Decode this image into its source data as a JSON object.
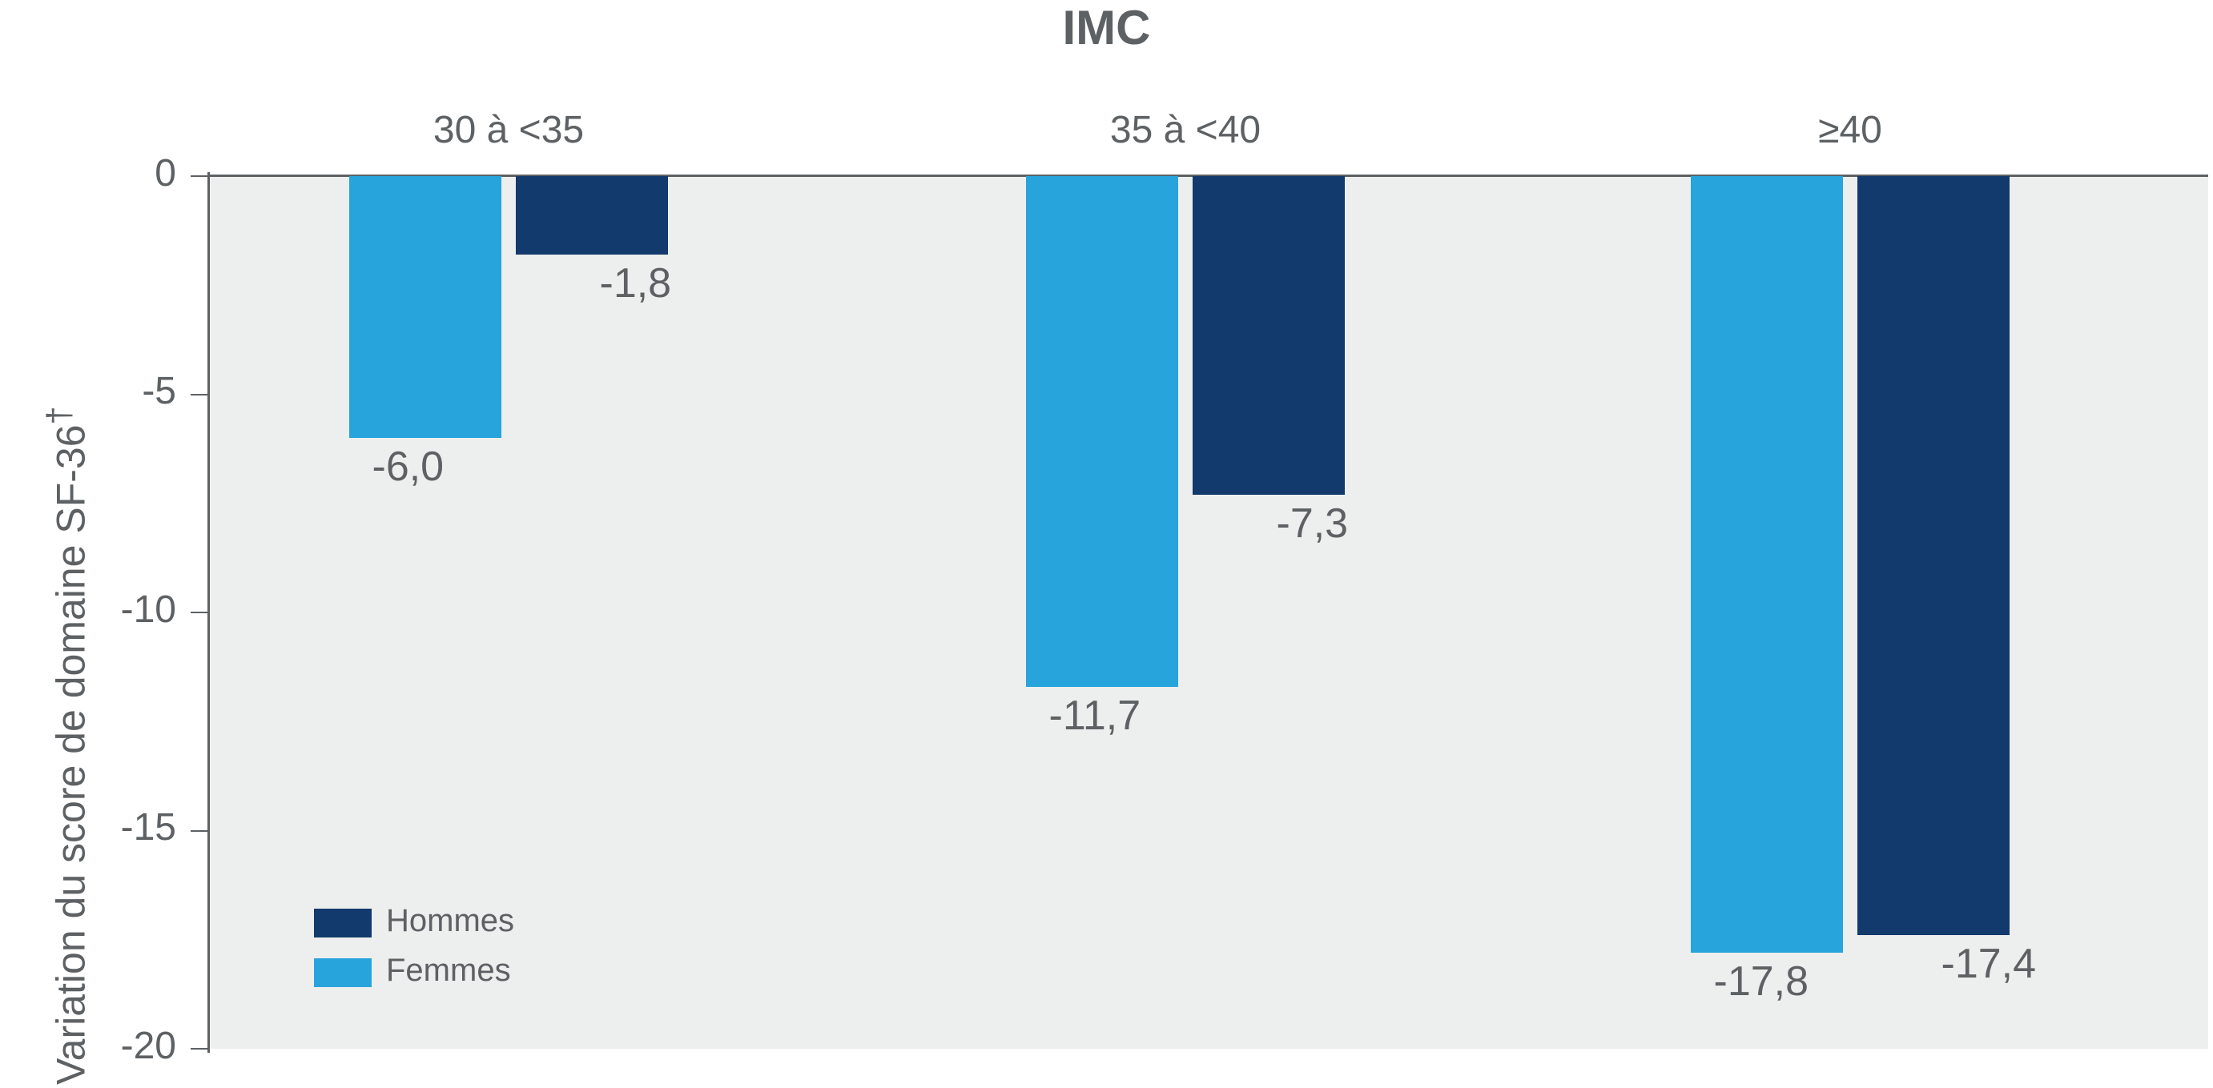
{
  "chart": {
    "type": "bar",
    "supertitle": "IMC",
    "supertitle_fontsize": 60,
    "supertitle_fontweight": "600",
    "categories": [
      "30 à <35",
      "35 à <40",
      "≥40"
    ],
    "category_fontsize": 48,
    "series": [
      {
        "key": "femmes",
        "label": "Femmes",
        "color": "#28a4dc",
        "values": [
          -6.0,
          -11.7,
          -17.8
        ],
        "value_labels": [
          "-6,0",
          "-11,7",
          "-17,8"
        ]
      },
      {
        "key": "hommes",
        "label": "Hommes",
        "color": "#123a6c",
        "values": [
          -1.8,
          -7.3,
          -17.4
        ],
        "value_labels": [
          "-1,8",
          "-7,3",
          "-17,4"
        ]
      }
    ],
    "value_label_fontsize": 52,
    "value_label_color": "#5d6164",
    "yaxis": {
      "label": "Variation du score de domaine SF-36",
      "label_superscript": "†",
      "label_fontsize": 50,
      "min": -20,
      "max": 0,
      "ticks": [
        0,
        -5,
        -10,
        -15,
        -20
      ],
      "tick_fontsize": 48
    },
    "plot": {
      "background_color": "#edeeee",
      "axis_line_color": "#5d6164",
      "text_color": "#5d6164",
      "legend": {
        "fontsize": 40
      }
    }
  }
}
